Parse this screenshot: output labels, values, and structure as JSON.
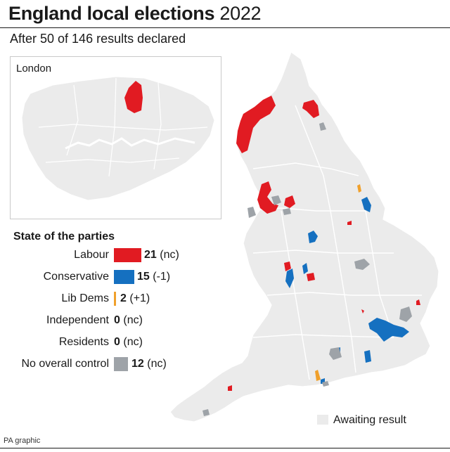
{
  "header": {
    "title_bold": "England local elections",
    "title_year": "2022",
    "subtitle": "After 50 of 146 results declared"
  },
  "inset": {
    "title": "London"
  },
  "legend": {
    "title": "State of the parties",
    "rows": [
      {
        "label": "Labour",
        "count": "21",
        "change": "(nc)",
        "color": "#e11b22"
      },
      {
        "label": "Conservative",
        "count": "15",
        "change": "(-1)",
        "color": "#1570c0"
      },
      {
        "label": "Lib Dems",
        "count": "2",
        "change": "(+1)",
        "color": "#f0a02b"
      },
      {
        "label": "Independent",
        "count": "0",
        "change": "(nc)",
        "color": ""
      },
      {
        "label": "Residents",
        "count": "0",
        "change": "(nc)",
        "color": ""
      },
      {
        "label": "No overall control",
        "count": "12",
        "change": "(nc)",
        "color": "#9ea3a8"
      }
    ],
    "awaiting_label": "Awaiting result",
    "awaiting_color": "#ebebeb"
  },
  "credit": "PA graphic"
}
